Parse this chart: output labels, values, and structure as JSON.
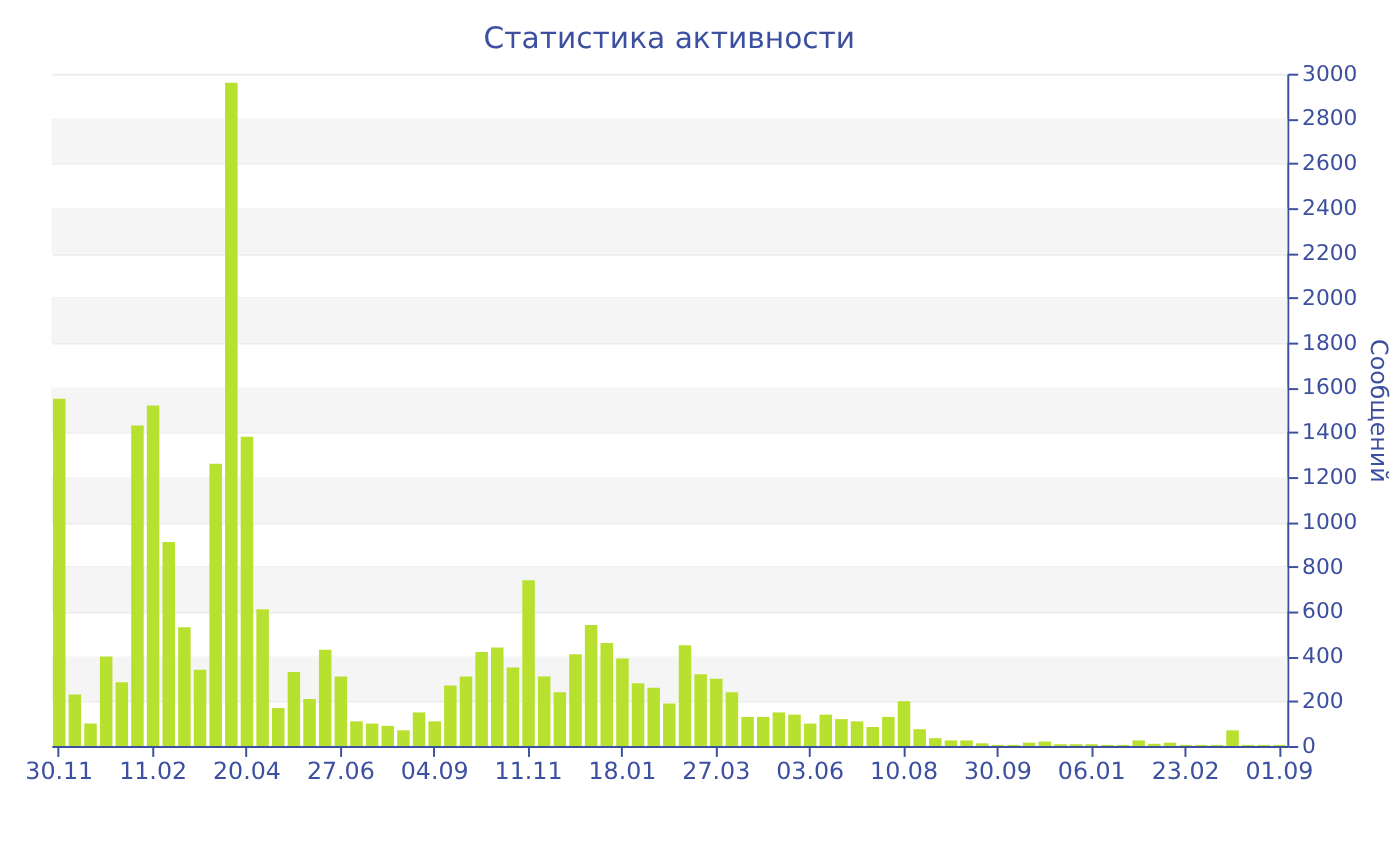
{
  "chart_data": {
    "type": "bar",
    "title": "Статистика активности",
    "ylabel": "Сообщений",
    "color": "#b8e02e",
    "categories": [
      "30.11",
      null,
      null,
      null,
      null,
      null,
      "11.02",
      null,
      null,
      null,
      null,
      null,
      "20.04",
      null,
      null,
      null,
      null,
      null,
      "27.06",
      null,
      null,
      null,
      null,
      null,
      "04.09",
      null,
      null,
      null,
      null,
      null,
      "11.11",
      null,
      null,
      null,
      null,
      null,
      "18.01",
      null,
      null,
      null,
      null,
      null,
      "27.03",
      null,
      null,
      null,
      null,
      null,
      "03.06",
      null,
      null,
      null,
      null,
      null,
      "10.08",
      null,
      null,
      null,
      null,
      null,
      "30.09",
      null,
      null,
      null,
      null,
      null,
      "06.01",
      null,
      null,
      null,
      null,
      null,
      "23.02",
      null,
      null,
      null,
      null,
      null,
      "01.09"
    ],
    "values": [
      1550,
      230,
      100,
      400,
      285,
      1430,
      1520,
      910,
      530,
      340,
      1260,
      2960,
      1380,
      610,
      170,
      330,
      210,
      430,
      310,
      110,
      100,
      90,
      70,
      150,
      110,
      270,
      310,
      420,
      440,
      350,
      740,
      310,
      240,
      410,
      540,
      460,
      390,
      280,
      260,
      190,
      450,
      320,
      300,
      240,
      130,
      130,
      150,
      140,
      100,
      140,
      120,
      110,
      85,
      130,
      200,
      75,
      35,
      25,
      25,
      12,
      5,
      5,
      15,
      20,
      8,
      8,
      8,
      5,
      5,
      25,
      10,
      15,
      5,
      5,
      5,
      70,
      5,
      5,
      5
    ],
    "ylim": [
      0,
      3000
    ],
    "yticks": [
      0,
      200,
      400,
      600,
      800,
      1000,
      1200,
      1400,
      1600,
      1800,
      2000,
      2200,
      2400,
      2600,
      2800,
      3000
    ],
    "grid": true
  }
}
